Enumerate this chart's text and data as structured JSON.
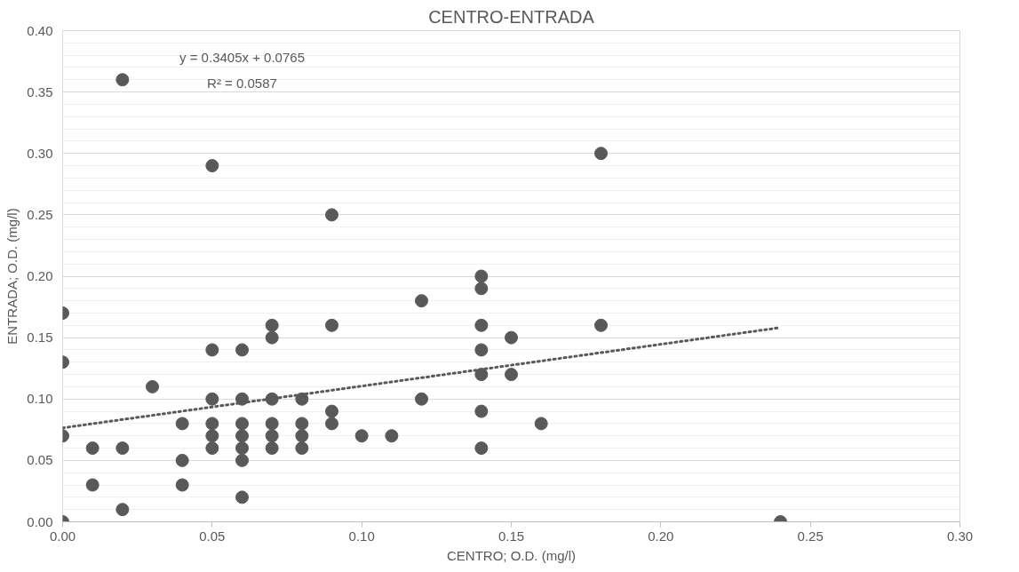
{
  "chart_data": {
    "type": "scatter",
    "title": "CENTRO-ENTRADA",
    "xlabel": "CENTRO; O.D. (mg/l)",
    "ylabel": "ENTRADA; O.D. (mg/l)",
    "x": [
      0,
      0,
      0,
      0,
      0.01,
      0.01,
      0.02,
      0.02,
      0.02,
      0.03,
      0.04,
      0.04,
      0.04,
      0.05,
      0.05,
      0.05,
      0.05,
      0.05,
      0.05,
      0.06,
      0.06,
      0.06,
      0.06,
      0.06,
      0.06,
      0.06,
      0.07,
      0.07,
      0.07,
      0.07,
      0.07,
      0.07,
      0.08,
      0.08,
      0.08,
      0.08,
      0.09,
      0.09,
      0.09,
      0.09,
      0.1,
      0.11,
      0.12,
      0.12,
      0.14,
      0.14,
      0.14,
      0.14,
      0.14,
      0.14,
      0.14,
      0.15,
      0.15,
      0.16,
      0.18,
      0.18,
      0.24
    ],
    "series": [
      {
        "color": "#595959",
        "marker": "circle",
        "values": [
          0,
          0.07,
          0.13,
          0.17,
          0.03,
          0.06,
          0.01,
          0.06,
          0.36,
          0.11,
          0.03,
          0.05,
          0.08,
          0.06,
          0.07,
          0.08,
          0.1,
          0.14,
          0.29,
          0.02,
          0.05,
          0.06,
          0.07,
          0.08,
          0.1,
          0.14,
          0.06,
          0.07,
          0.08,
          0.1,
          0.15,
          0.16,
          0.06,
          0.07,
          0.08,
          0.1,
          0.08,
          0.09,
          0.16,
          0.25,
          0.07,
          0.07,
          0.1,
          0.18,
          0.06,
          0.09,
          0.12,
          0.14,
          0.16,
          0.19,
          0.2,
          0.12,
          0.15,
          0.08,
          0.16,
          0.3,
          0.0
        ]
      },
      {
        "type": "line",
        "color": "#595959",
        "line_style": "dotted",
        "x": [
          0,
          0.24
        ],
        "values": [
          0.0765,
          0.1582
        ]
      }
    ],
    "annotations": [
      "y = 0.3405x + 0.0765",
      "R² = 0.0587"
    ],
    "xlim": [
      0,
      0.3
    ],
    "xticks": [
      {
        "value": 0,
        "label": "0.00"
      },
      {
        "value": 0.05,
        "label": "0.05"
      },
      {
        "value": 0.1,
        "label": "0.10"
      },
      {
        "value": 0.15,
        "label": "0.15"
      },
      {
        "value": 0.2,
        "label": "0.20"
      },
      {
        "value": 0.25,
        "label": "0.25"
      },
      {
        "value": 0.3,
        "label": "0.30"
      }
    ],
    "ylim": [
      0,
      0.4
    ],
    "yticks": [
      {
        "value": 0,
        "label": "0.00"
      },
      {
        "value": 0.05,
        "label": "0.05"
      },
      {
        "value": 0.1,
        "label": "0.10"
      },
      {
        "value": 0.15,
        "label": "0.15"
      },
      {
        "value": 0.2,
        "label": "0.20"
      },
      {
        "value": 0.25,
        "label": "0.25"
      },
      {
        "value": 0.3,
        "label": "0.30"
      },
      {
        "value": 0.35,
        "label": "0.35"
      },
      {
        "value": 0.4,
        "label": "0.40"
      }
    ],
    "grid": "y"
  }
}
